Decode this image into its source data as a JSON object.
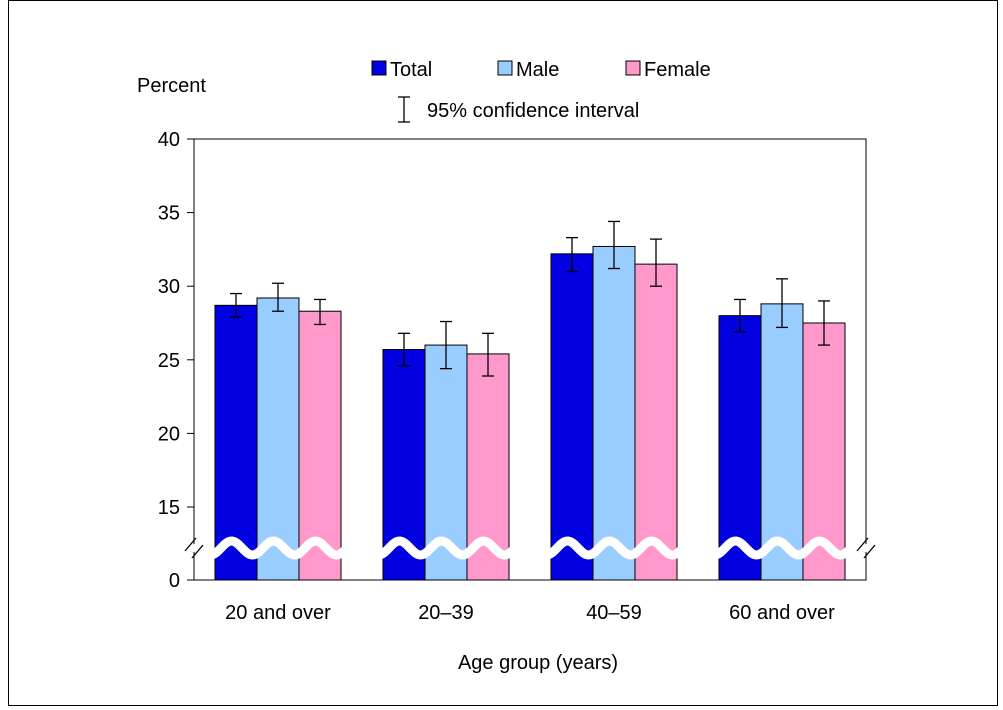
{
  "chart_data": {
    "type": "bar",
    "categories": [
      "20 and over",
      "20–39",
      "40–59",
      "60 and over"
    ],
    "series": [
      {
        "name": "Total",
        "values": [
          28.7,
          25.7,
          32.2,
          28.0
        ],
        "ci_low": [
          27.9,
          24.6,
          31.0,
          26.9
        ],
        "ci_high": [
          29.5,
          26.8,
          33.3,
          29.1
        ]
      },
      {
        "name": "Male",
        "values": [
          29.2,
          26.0,
          32.7,
          28.8
        ],
        "ci_low": [
          28.3,
          24.4,
          31.2,
          27.2
        ],
        "ci_high": [
          30.2,
          27.6,
          34.4,
          30.5
        ]
      },
      {
        "name": "Female",
        "values": [
          28.3,
          25.4,
          31.5,
          27.5
        ],
        "ci_low": [
          27.4,
          23.9,
          30.0,
          26.0
        ],
        "ci_high": [
          29.1,
          26.8,
          33.2,
          29.0
        ]
      }
    ],
    "colors": [
      "#0000e0",
      "#99ccff",
      "#ff99cc"
    ],
    "ylabel": "Percent",
    "xlabel": "Age group (years)",
    "yticks": [
      0,
      15,
      20,
      25,
      30,
      35,
      40
    ],
    "ylim": [
      0,
      40
    ],
    "axis_break": true,
    "legend_note": "95% confidence interval"
  }
}
